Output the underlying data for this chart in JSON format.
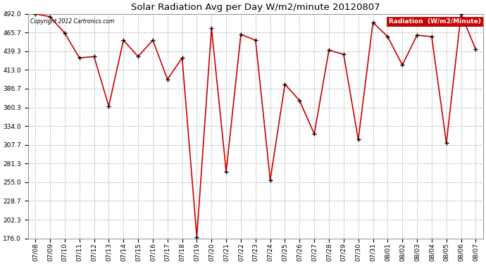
{
  "title": "Solar Radiation Avg per Day W/m2/minute 20120807",
  "copyright_text": "Copyright 2012 Cartronics.com",
  "legend_label": "Radiation  (W/m2/Minute)",
  "background_color": "#ffffff",
  "plot_bg_color": "#ffffff",
  "grid_color": "#bbbbbb",
  "line_color": "#cc0000",
  "marker_color": "#000000",
  "legend_bg": "#cc0000",
  "legend_fg": "#ffffff",
  "ylim": [
    176.0,
    492.0
  ],
  "yticks": [
    176.0,
    202.3,
    228.7,
    255.0,
    281.3,
    307.7,
    334.0,
    360.3,
    386.7,
    413.0,
    439.3,
    465.7,
    492.0
  ],
  "dates": [
    "07/08",
    "07/09",
    "07/10",
    "07/11",
    "07/12",
    "07/13",
    "07/14",
    "07/15",
    "07/16",
    "07/17",
    "07/18",
    "07/19",
    "07/20",
    "07/21",
    "07/22",
    "07/23",
    "07/24",
    "07/25",
    "07/26",
    "07/27",
    "07/28",
    "07/29",
    "07/30",
    "07/31",
    "08/01",
    "08/02",
    "08/03",
    "08/04",
    "08/05",
    "08/06",
    "08/07"
  ],
  "values": [
    492.0,
    488.0,
    465.0,
    430.0,
    432.0,
    362.0,
    455.0,
    432.0,
    455.0,
    400.0,
    430.0,
    178.0,
    472.0,
    270.0,
    463.0,
    455.0,
    258.0,
    393.0,
    370.0,
    323.0,
    441.0,
    435.0,
    315.0,
    480.0,
    460.0,
    420.0,
    462.0,
    460.0,
    310.0,
    492.0,
    442.0
  ]
}
